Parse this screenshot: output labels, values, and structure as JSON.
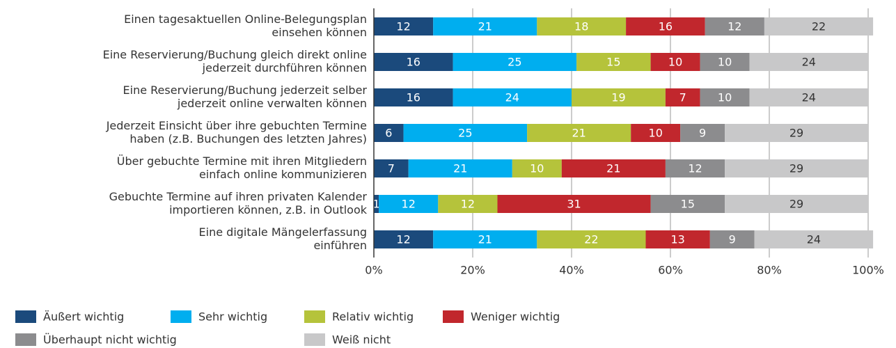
{
  "chart_data": {
    "type": "stacked_bar_horizontal",
    "categories": [
      [
        "Einen tagesaktuellen Online-Belegungsplan",
        "einsehen können"
      ],
      [
        "Eine Reservierung/Buchung gleich direkt online",
        "jederzeit durchführen können"
      ],
      [
        "Eine Reservierung/Buchung jederzeit selber",
        "jederzeit online verwalten können"
      ],
      [
        "Jederzeit Einsicht über ihre gebuchten Termine",
        "haben (z.B. Buchungen des letzten Jahres)"
      ],
      [
        "Über gebuchte Termine mit ihren Mitgliedern",
        "einfach online kommunizieren"
      ],
      [
        "Gebuchte Termine auf ihren privaten Kalender",
        "importieren können, z.B. in Outlook"
      ],
      [
        "Eine digitale Mängelerfassung",
        "einführen"
      ]
    ],
    "series": [
      {
        "name": "Äußert wichtig",
        "color": "#1b4a7c",
        "values": [
          12,
          16,
          16,
          6,
          7,
          1,
          12
        ]
      },
      {
        "name": "Sehr wichtig",
        "color": "#00aeef",
        "values": [
          21,
          25,
          24,
          25,
          21,
          12,
          21
        ]
      },
      {
        "name": "Relativ wichtig",
        "color": "#b5c33b",
        "values": [
          18,
          15,
          19,
          21,
          10,
          12,
          22
        ]
      },
      {
        "name": "Weniger wichtig",
        "color": "#c1272d",
        "values": [
          16,
          10,
          7,
          10,
          21,
          31,
          13
        ]
      },
      {
        "name": "Überhaupt nicht wichtig",
        "color": "#8c8c8e",
        "values": [
          12,
          10,
          10,
          9,
          12,
          15,
          9
        ]
      },
      {
        "name": "Weiß nicht",
        "color": "#c8c8c9",
        "values": [
          22,
          24,
          24,
          29,
          29,
          29,
          24
        ]
      }
    ],
    "xlim": [
      0,
      100
    ],
    "xticks": [
      {
        "value": 0,
        "label": "0%"
      },
      {
        "value": 20,
        "label": "20%"
      },
      {
        "value": 40,
        "label": "40%"
      },
      {
        "value": 60,
        "label": "60%"
      },
      {
        "value": 80,
        "label": "80%"
      },
      {
        "value": 100,
        "label": "100%"
      }
    ],
    "grid": true
  }
}
